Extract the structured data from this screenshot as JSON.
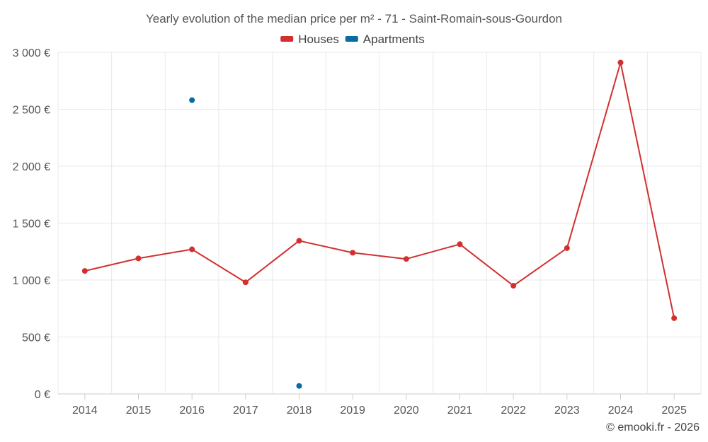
{
  "chart_data": {
    "type": "line",
    "title": "Yearly evolution of the median price per m² - 71 - Saint-Romain-sous-Gourdon",
    "categories": [
      "2014",
      "2015",
      "2016",
      "2017",
      "2018",
      "2019",
      "2020",
      "2021",
      "2022",
      "2023",
      "2024",
      "2025"
    ],
    "series": [
      {
        "name": "Houses",
        "color": "#d32f2f",
        "values": [
          1080,
          1190,
          1270,
          980,
          1345,
          1240,
          1185,
          1315,
          950,
          1280,
          2910,
          665
        ]
      },
      {
        "name": "Apartments",
        "color": "#0a6aa1",
        "values": [
          null,
          null,
          2580,
          null,
          70,
          null,
          null,
          null,
          null,
          null,
          null,
          null
        ]
      }
    ],
    "ylim": [
      0,
      3000
    ],
    "yticks": [
      0,
      500,
      1000,
      1500,
      2000,
      2500,
      3000
    ],
    "ytick_labels": [
      "0 €",
      "500 €",
      "1 000 €",
      "1 500 €",
      "2 000 €",
      "2 500 €",
      "3 000 €"
    ],
    "xlabel": "",
    "ylabel": "",
    "legend_position": "top-center",
    "grid": true
  },
  "credit": "© emooki.fr - 2026"
}
